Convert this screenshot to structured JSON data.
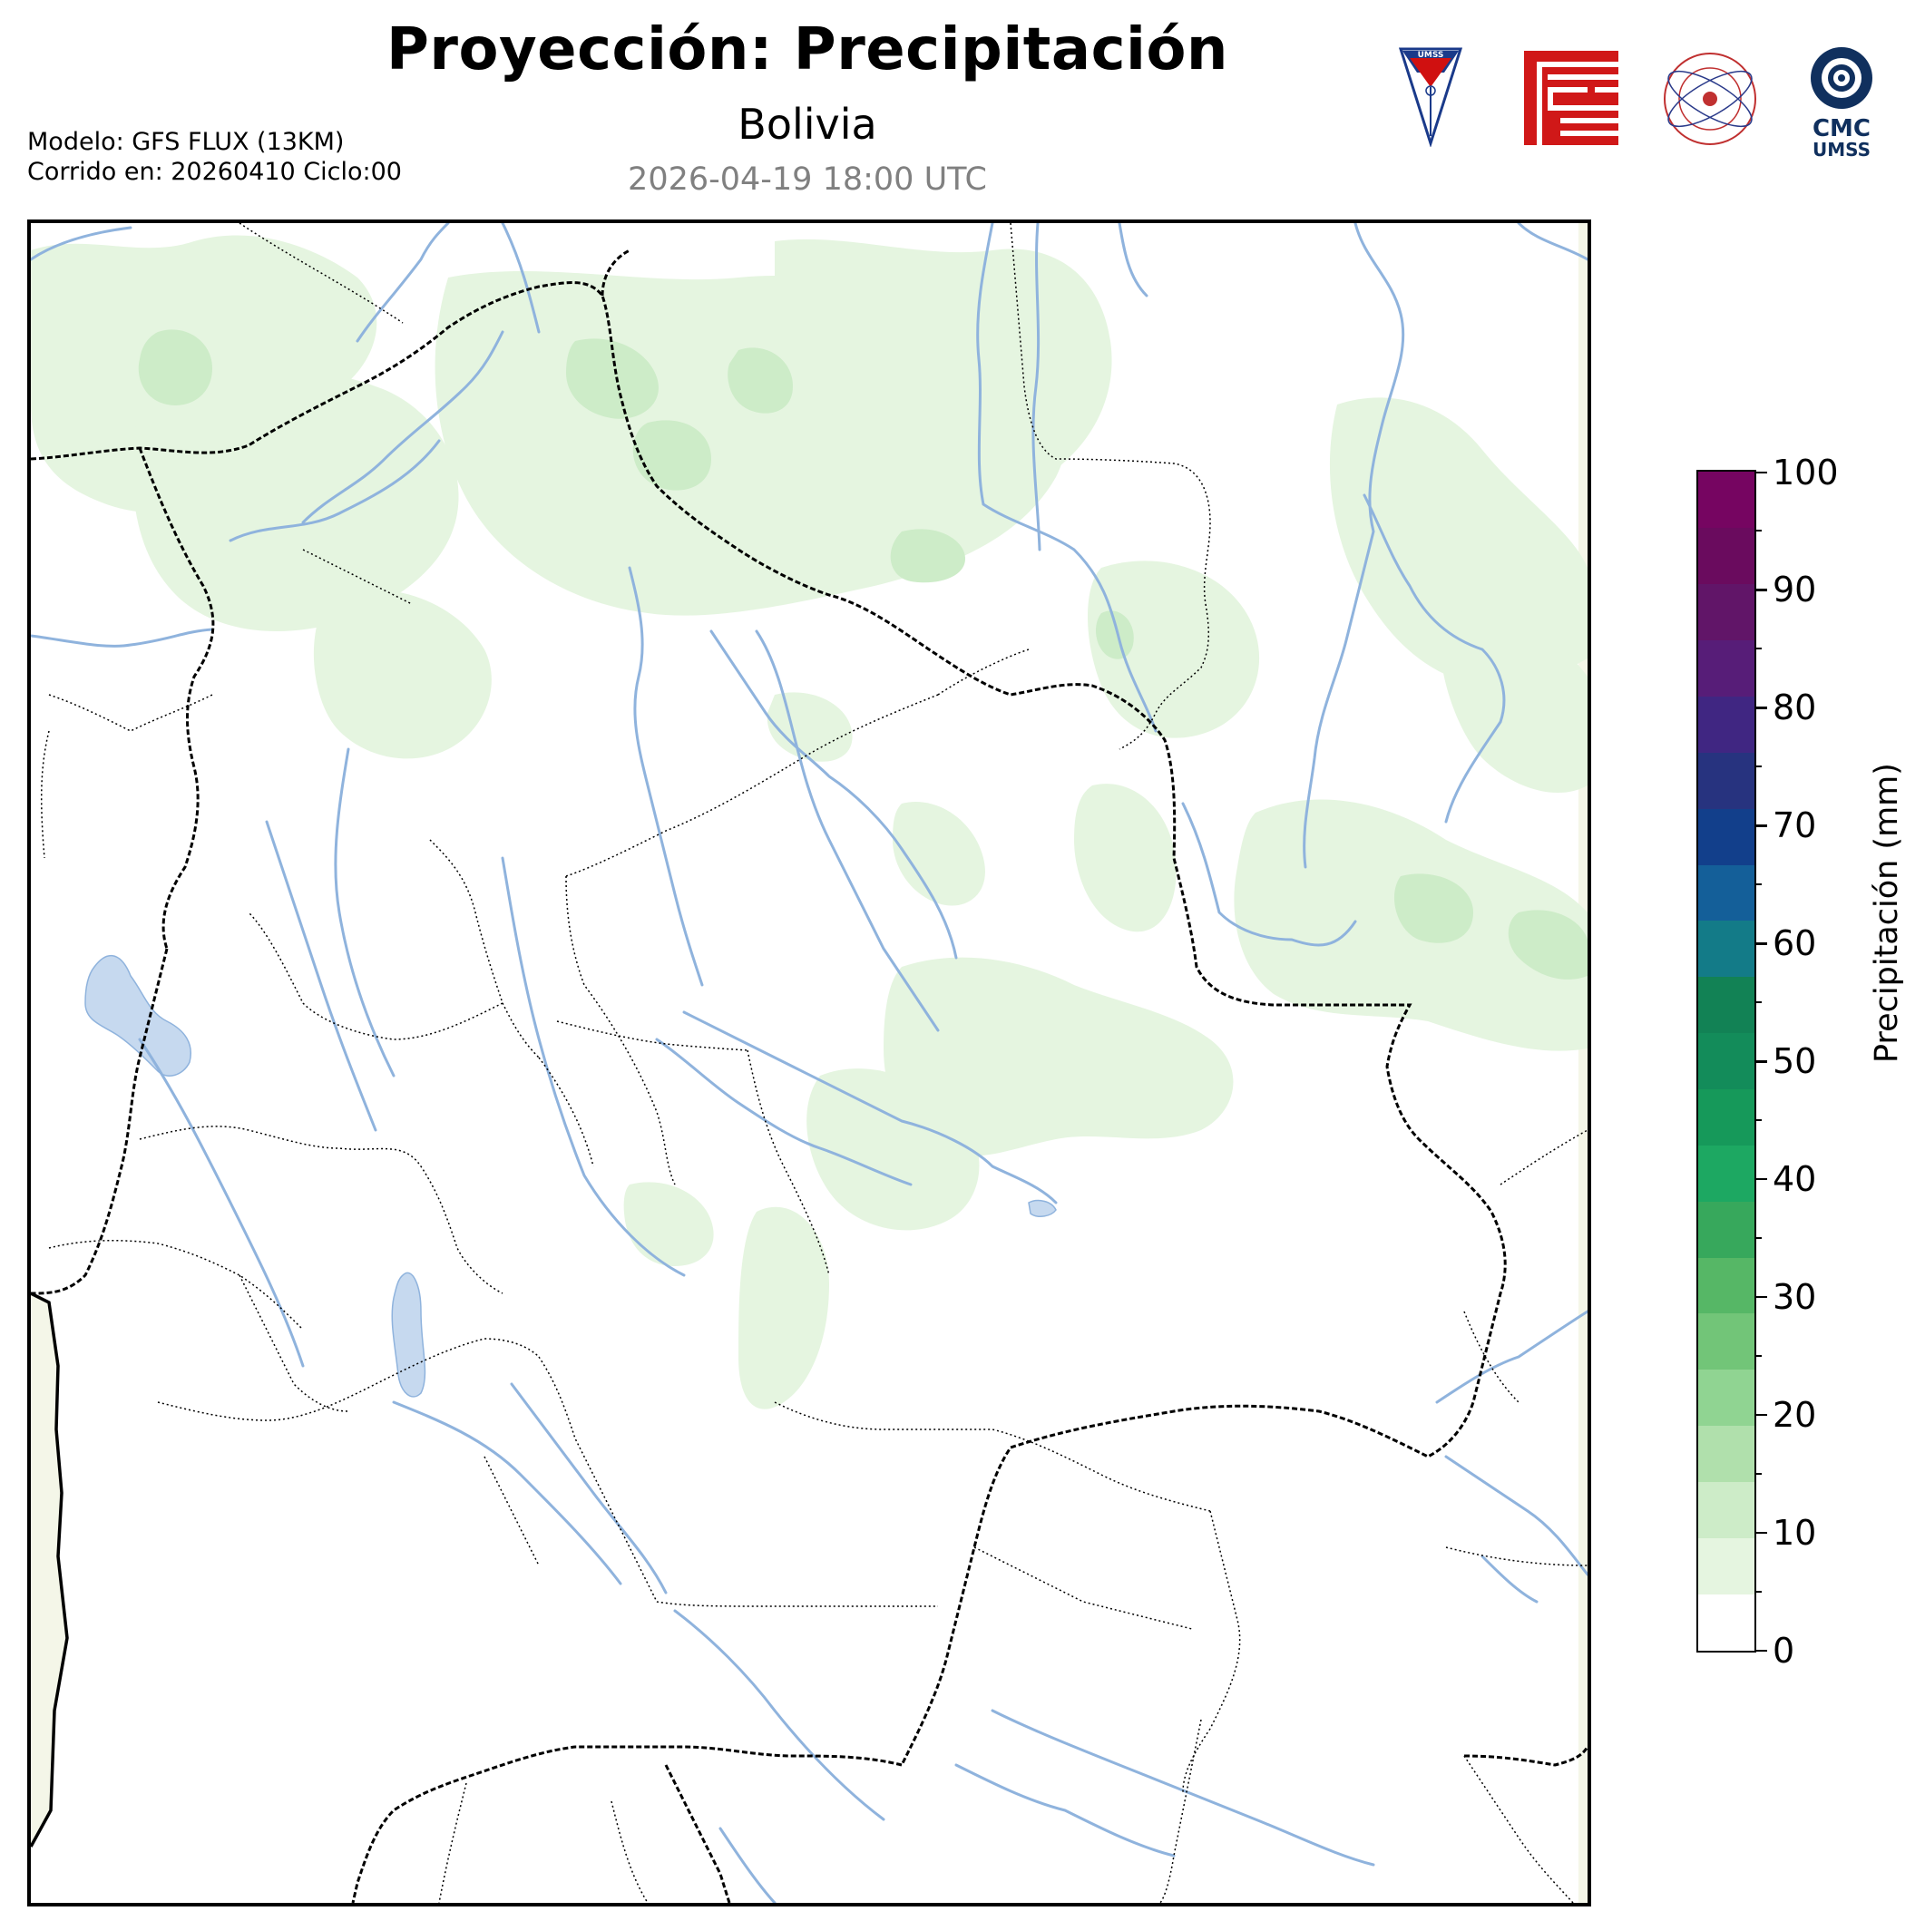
{
  "header": {
    "title": "Proyección: Precipitación",
    "subtitle": "Bolivia",
    "datetime": "2026-04-19 18:00 UTC"
  },
  "meta": {
    "model": "Modelo: GFS FLUX (13KM)",
    "run": "Corrido en: 20260410 Ciclo:00"
  },
  "logos": {
    "umss_badge_text": "UMSS",
    "cmc_line1": "CMC",
    "cmc_line2": "UMSS"
  },
  "colorbar": {
    "label": "Precipitación (mm)",
    "min": 0,
    "max": 100,
    "major_ticks": [
      "0",
      "10",
      "20",
      "30",
      "40",
      "50",
      "60",
      "70",
      "80",
      "90",
      "100"
    ],
    "colors": [
      "#ffffff",
      "#e5f5e0",
      "#cdecc8",
      "#b0e0ac",
      "#90d492",
      "#72c578",
      "#56b766",
      "#37a85c",
      "#1da862",
      "#16995a",
      "#138c5a",
      "#128255",
      "#137b88",
      "#145f99",
      "#123f8b",
      "#27337f",
      "#402682",
      "#571d78",
      "#611568",
      "#6a0b5e",
      "#760561"
    ]
  },
  "map": {
    "ocean_color": "#f4f6e8",
    "precip_light": "#e5f5e0",
    "precip_mid": "#cdecc8",
    "river_color": "#8fb3dd",
    "lake_color": "#c6d9ef",
    "border_color": "#000000"
  }
}
